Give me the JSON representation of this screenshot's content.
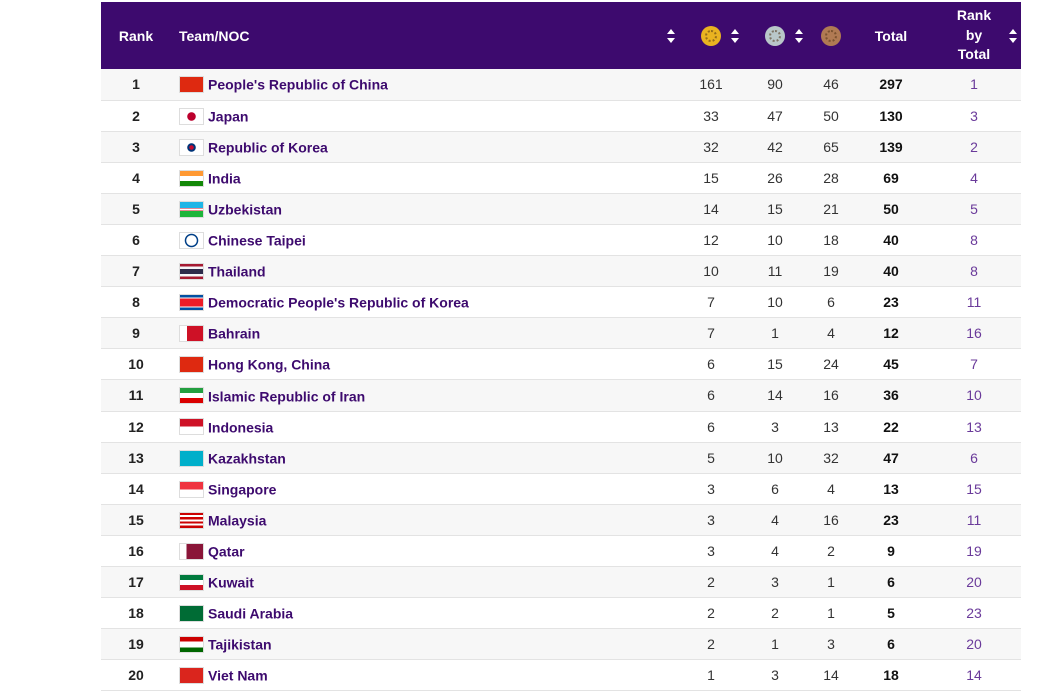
{
  "header": {
    "rank": "Rank",
    "team": "Team/NOC",
    "gold_icon": "gold-medal-icon",
    "silver_icon": "silver-medal-icon",
    "bronze_icon": "bronze-medal-icon",
    "total": "Total",
    "rank_by_total_1": "Rank",
    "rank_by_total_2": "by",
    "rank_by_total_3": "Total"
  },
  "colors": {
    "header_bg": "#3d0a6e",
    "team_text": "#3d0a6e",
    "gold": "#e9b320",
    "silver": "#b9c7c9",
    "bronze": "#b07a53"
  },
  "rows": [
    {
      "rank": "1",
      "team": "People's Republic of China",
      "gold": "161",
      "silver": "90",
      "bronze": "46",
      "total": "297",
      "rbt": "1"
    },
    {
      "rank": "2",
      "team": "Japan",
      "gold": "33",
      "silver": "47",
      "bronze": "50",
      "total": "130",
      "rbt": "3"
    },
    {
      "rank": "3",
      "team": "Republic of Korea",
      "gold": "32",
      "silver": "42",
      "bronze": "65",
      "total": "139",
      "rbt": "2"
    },
    {
      "rank": "4",
      "team": "India",
      "gold": "15",
      "silver": "26",
      "bronze": "28",
      "total": "69",
      "rbt": "4"
    },
    {
      "rank": "5",
      "team": "Uzbekistan",
      "gold": "14",
      "silver": "15",
      "bronze": "21",
      "total": "50",
      "rbt": "5"
    },
    {
      "rank": "6",
      "team": "Chinese Taipei",
      "gold": "12",
      "silver": "10",
      "bronze": "18",
      "total": "40",
      "rbt": "8"
    },
    {
      "rank": "7",
      "team": "Thailand",
      "gold": "10",
      "silver": "11",
      "bronze": "19",
      "total": "40",
      "rbt": "8"
    },
    {
      "rank": "8",
      "team": "Democratic People's Republic of Korea",
      "gold": "7",
      "silver": "10",
      "bronze": "6",
      "total": "23",
      "rbt": "11"
    },
    {
      "rank": "9",
      "team": "Bahrain",
      "gold": "7",
      "silver": "1",
      "bronze": "4",
      "total": "12",
      "rbt": "16"
    },
    {
      "rank": "10",
      "team": "Hong Kong, China",
      "gold": "6",
      "silver": "15",
      "bronze": "24",
      "total": "45",
      "rbt": "7"
    },
    {
      "rank": "11",
      "team": "Islamic Republic of Iran",
      "gold": "6",
      "silver": "14",
      "bronze": "16",
      "total": "36",
      "rbt": "10"
    },
    {
      "rank": "12",
      "team": "Indonesia",
      "gold": "6",
      "silver": "3",
      "bronze": "13",
      "total": "22",
      "rbt": "13"
    },
    {
      "rank": "13",
      "team": "Kazakhstan",
      "gold": "5",
      "silver": "10",
      "bronze": "32",
      "total": "47",
      "rbt": "6"
    },
    {
      "rank": "14",
      "team": "Singapore",
      "gold": "3",
      "silver": "6",
      "bronze": "4",
      "total": "13",
      "rbt": "15"
    },
    {
      "rank": "15",
      "team": "Malaysia",
      "gold": "3",
      "silver": "4",
      "bronze": "16",
      "total": "23",
      "rbt": "11"
    },
    {
      "rank": "16",
      "team": "Qatar",
      "gold": "3",
      "silver": "4",
      "bronze": "2",
      "total": "9",
      "rbt": "19"
    },
    {
      "rank": "17",
      "team": "Kuwait",
      "gold": "2",
      "silver": "3",
      "bronze": "1",
      "total": "6",
      "rbt": "20"
    },
    {
      "rank": "18",
      "team": "Saudi Arabia",
      "gold": "2",
      "silver": "2",
      "bronze": "1",
      "total": "5",
      "rbt": "23"
    },
    {
      "rank": "19",
      "team": "Tajikistan",
      "gold": "2",
      "silver": "1",
      "bronze": "3",
      "total": "6",
      "rbt": "20"
    },
    {
      "rank": "20",
      "team": "Viet Nam",
      "gold": "1",
      "silver": "3",
      "bronze": "14",
      "total": "18",
      "rbt": "14"
    }
  ]
}
